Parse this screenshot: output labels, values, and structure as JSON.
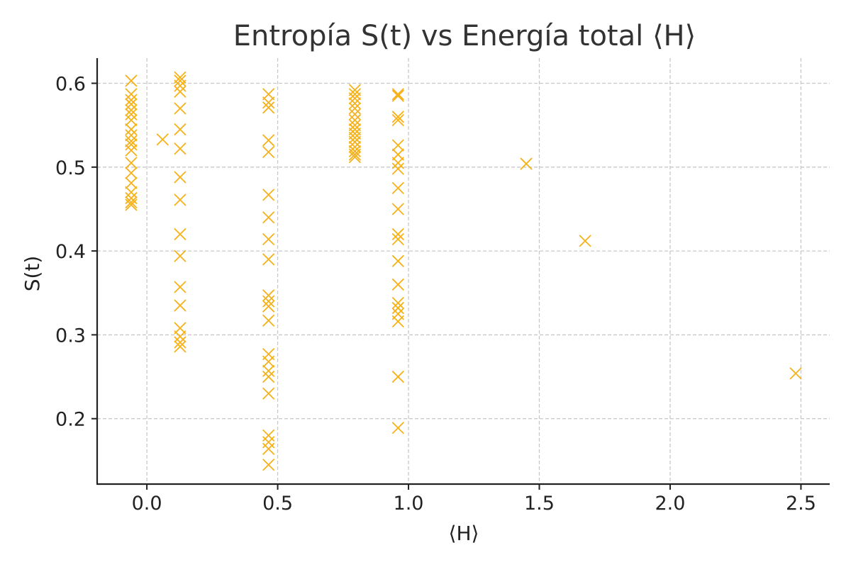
{
  "chart_data": {
    "type": "scatter",
    "title": "Entropía S(t) vs Energía total ⟨H⟩",
    "xlabel": "⟨H⟩",
    "ylabel": "S(t)",
    "xlim": [
      -0.19,
      2.61
    ],
    "ylim": [
      0.122,
      0.63
    ],
    "xticks": [
      0.0,
      0.5,
      1.0,
      1.5,
      2.0,
      2.5
    ],
    "xtick_labels": [
      "0.0",
      "0.5",
      "1.0",
      "1.5",
      "2.0",
      "2.5"
    ],
    "yticks": [
      0.2,
      0.3,
      0.4,
      0.5,
      0.6
    ],
    "ytick_labels": [
      "0.2",
      "0.3",
      "0.4",
      "0.5",
      "0.6"
    ],
    "grid": true,
    "marker": "x",
    "color": "#f5b21a",
    "series": [
      {
        "points": [
          [
            -0.06,
            0.603
          ],
          [
            -0.06,
            0.587
          ],
          [
            -0.06,
            0.58
          ],
          [
            -0.06,
            0.575
          ],
          [
            -0.06,
            0.568
          ],
          [
            -0.06,
            0.563
          ],
          [
            -0.06,
            0.556
          ],
          [
            -0.06,
            0.545
          ],
          [
            -0.06,
            0.538
          ],
          [
            -0.06,
            0.531
          ],
          [
            -0.06,
            0.527
          ],
          [
            -0.06,
            0.52
          ],
          [
            -0.06,
            0.505
          ],
          [
            -0.06,
            0.493
          ],
          [
            -0.06,
            0.481
          ],
          [
            -0.06,
            0.47
          ],
          [
            -0.06,
            0.463
          ],
          [
            -0.06,
            0.458
          ],
          [
            -0.06,
            0.455
          ],
          [
            0.06,
            0.533
          ],
          [
            0.127,
            0.607
          ],
          [
            0.127,
            0.603
          ],
          [
            0.127,
            0.597
          ],
          [
            0.127,
            0.59
          ],
          [
            0.127,
            0.57
          ],
          [
            0.127,
            0.545
          ],
          [
            0.127,
            0.522
          ],
          [
            0.127,
            0.488
          ],
          [
            0.127,
            0.461
          ],
          [
            0.127,
            0.42
          ],
          [
            0.127,
            0.394
          ],
          [
            0.127,
            0.357
          ],
          [
            0.127,
            0.335
          ],
          [
            0.127,
            0.308
          ],
          [
            0.127,
            0.298
          ],
          [
            0.127,
            0.291
          ],
          [
            0.127,
            0.286
          ],
          [
            0.465,
            0.587
          ],
          [
            0.465,
            0.577
          ],
          [
            0.465,
            0.571
          ],
          [
            0.465,
            0.532
          ],
          [
            0.465,
            0.518
          ],
          [
            0.465,
            0.467
          ],
          [
            0.465,
            0.44
          ],
          [
            0.465,
            0.414
          ],
          [
            0.465,
            0.39
          ],
          [
            0.465,
            0.347
          ],
          [
            0.465,
            0.34
          ],
          [
            0.465,
            0.334
          ],
          [
            0.465,
            0.317
          ],
          [
            0.465,
            0.277
          ],
          [
            0.465,
            0.268
          ],
          [
            0.465,
            0.257
          ],
          [
            0.465,
            0.25
          ],
          [
            0.465,
            0.23
          ],
          [
            0.465,
            0.18
          ],
          [
            0.465,
            0.172
          ],
          [
            0.465,
            0.164
          ],
          [
            0.465,
            0.145
          ],
          [
            0.795,
            0.592
          ],
          [
            0.795,
            0.587
          ],
          [
            0.795,
            0.582
          ],
          [
            0.795,
            0.576
          ],
          [
            0.795,
            0.57
          ],
          [
            0.795,
            0.563
          ],
          [
            0.795,
            0.556
          ],
          [
            0.795,
            0.55
          ],
          [
            0.795,
            0.545
          ],
          [
            0.795,
            0.54
          ],
          [
            0.795,
            0.535
          ],
          [
            0.795,
            0.53
          ],
          [
            0.795,
            0.524
          ],
          [
            0.795,
            0.519
          ],
          [
            0.795,
            0.515
          ],
          [
            0.795,
            0.512
          ],
          [
            0.96,
            0.587
          ],
          [
            0.96,
            0.585
          ],
          [
            0.96,
            0.56
          ],
          [
            0.96,
            0.556
          ],
          [
            0.96,
            0.526
          ],
          [
            0.96,
            0.515
          ],
          [
            0.96,
            0.505
          ],
          [
            0.96,
            0.498
          ],
          [
            0.96,
            0.475
          ],
          [
            0.96,
            0.45
          ],
          [
            0.96,
            0.42
          ],
          [
            0.96,
            0.414
          ],
          [
            0.96,
            0.388
          ],
          [
            0.96,
            0.36
          ],
          [
            0.96,
            0.338
          ],
          [
            0.96,
            0.332
          ],
          [
            0.96,
            0.325
          ],
          [
            0.96,
            0.316
          ],
          [
            0.96,
            0.25
          ],
          [
            0.96,
            0.189
          ],
          [
            1.45,
            0.504
          ],
          [
            1.675,
            0.412
          ],
          [
            2.48,
            0.254
          ]
        ]
      }
    ]
  }
}
